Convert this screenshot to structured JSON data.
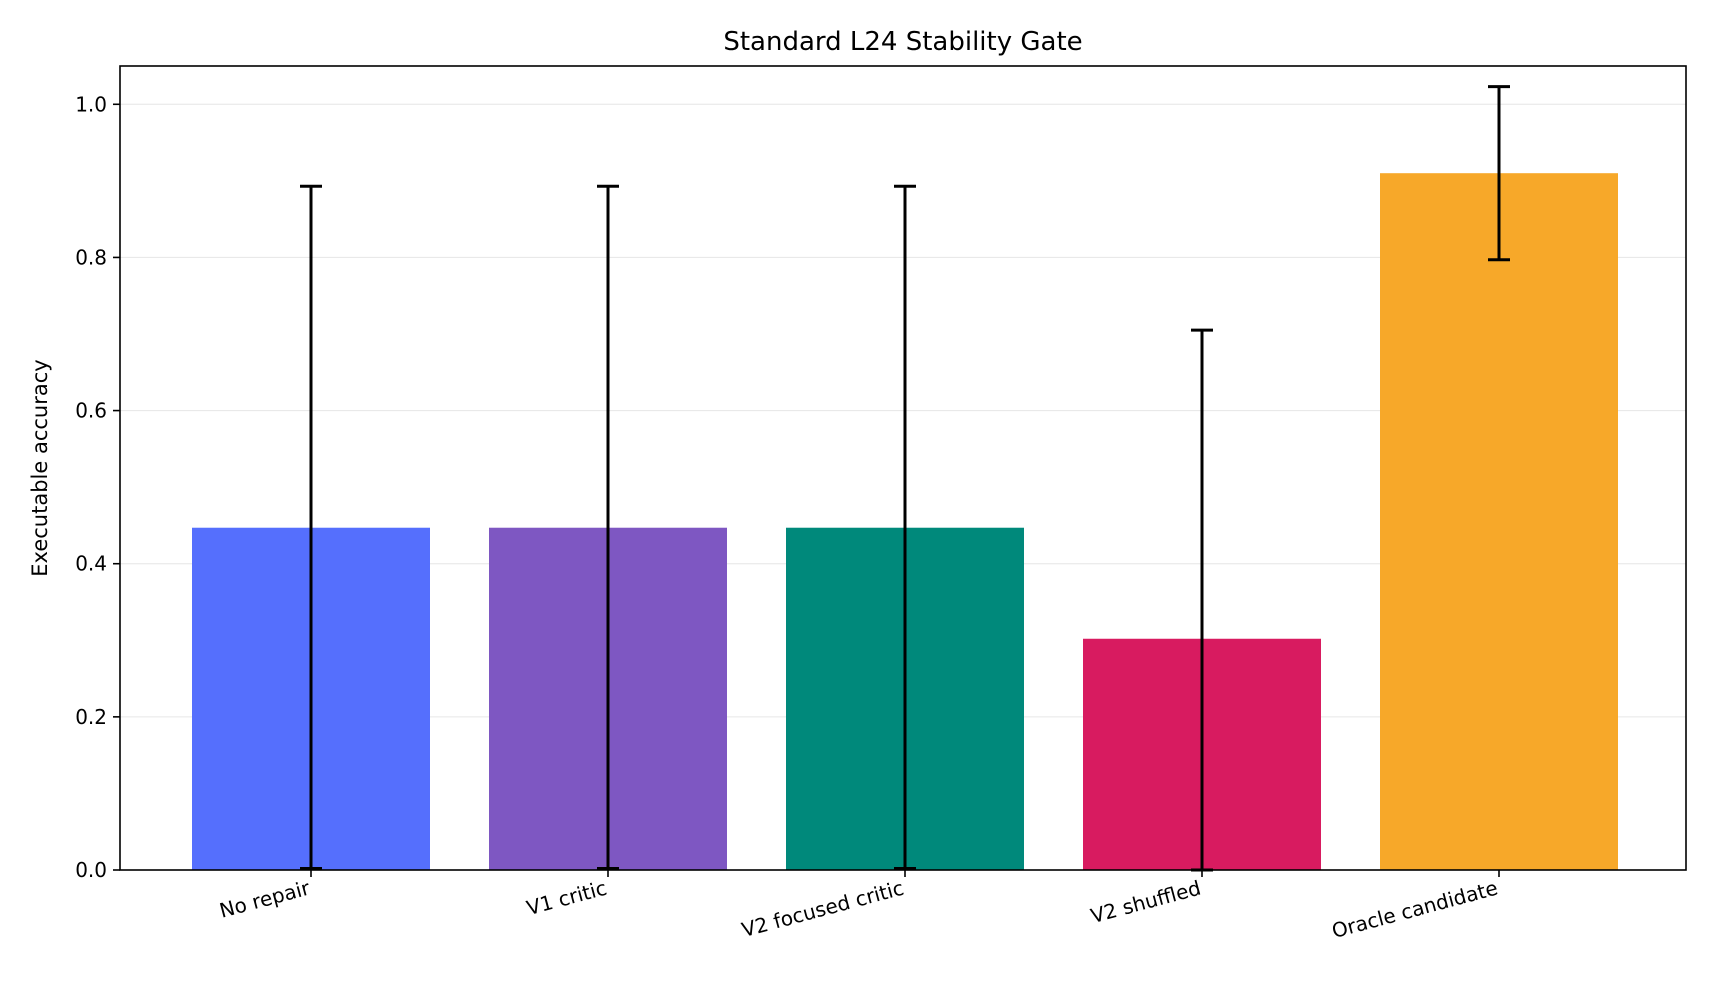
{
  "chart_data": {
    "type": "bar",
    "title": "Standard L24 Stability Gate",
    "xlabel": "",
    "ylabel": "Executable accuracy",
    "categories": [
      "No repair",
      "V1 critic",
      "V2 focused critic",
      "V2 shuffled",
      "Oracle candidate"
    ],
    "values": [
      0.447,
      0.447,
      0.447,
      0.302,
      0.91
    ],
    "error_low": [
      0.002,
      0.002,
      0.002,
      0.0,
      0.797
    ],
    "error_high": [
      0.893,
      0.893,
      0.893,
      0.705,
      1.023
    ],
    "colors": [
      "#556ffd",
      "#7e57c2",
      "#00897b",
      "#d81b60",
      "#f7a829"
    ],
    "ylim": [
      0,
      1.05
    ],
    "yticks": [
      0.0,
      0.2,
      0.4,
      0.6,
      0.8,
      1.0
    ],
    "ytick_labels": [
      "0.0",
      "0.2",
      "0.4",
      "0.6",
      "0.8",
      "1.0"
    ],
    "grid": "horizontal",
    "legend": "none"
  }
}
